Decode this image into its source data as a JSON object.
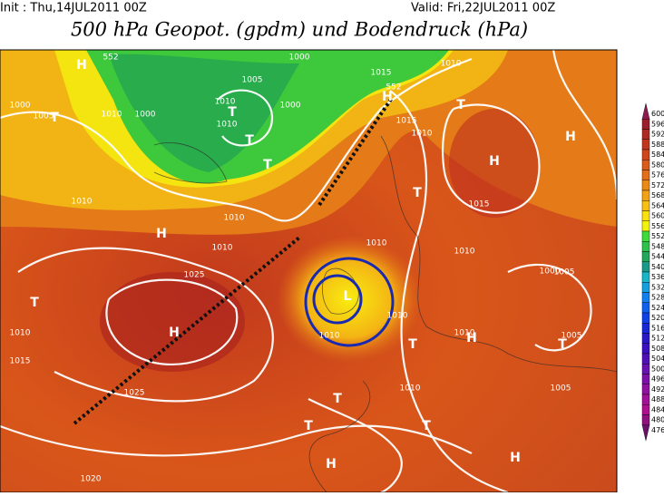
{
  "header": {
    "init": "Init : Thu,14JUL2011 00Z",
    "valid": "Valid: Fri,22JUL2011 00Z",
    "title": "500 hPa Geopot. (gpdm) und Bodendruck (hPa)"
  },
  "colorbar": {
    "levels": [
      600,
      596,
      592,
      588,
      584,
      580,
      576,
      572,
      568,
      564,
      560,
      556,
      552,
      548,
      544,
      540,
      536,
      532,
      528,
      524,
      520,
      516,
      512,
      508,
      504,
      500,
      496,
      492,
      488,
      484,
      480,
      476
    ],
    "colors": [
      "#8e1a52",
      "#9c1f2b",
      "#b02822",
      "#c2341e",
      "#d0451c",
      "#dc5a1a",
      "#e46f18",
      "#ec8a16",
      "#f2a214",
      "#f7c012",
      "#fbe010",
      "#f2f20e",
      "#3ddc3a",
      "#2fc24a",
      "#22a85a",
      "#1a9a8a",
      "#18b6c8",
      "#14a0e0",
      "#1080f0",
      "#1060f0",
      "#1040e8",
      "#1828d8",
      "#2818c8",
      "#3a10c0",
      "#5010b8",
      "#6810b0",
      "#7c10a8",
      "#9010a0",
      "#a01098",
      "#b01090",
      "#901080",
      "#6a106a"
    ]
  },
  "map_labels": [
    "552",
    "1000",
    "1015",
    "1010",
    "552",
    "H",
    "1000",
    "1005",
    "1010",
    "1005",
    "1010",
    "1000",
    "1010",
    "1000",
    "H",
    "T",
    "T",
    "T",
    "T",
    "1015",
    "1010",
    "T",
    "H",
    "1015",
    "1010",
    "1010",
    "H",
    "1010",
    "T",
    "H",
    "1010",
    "1025",
    "H",
    "1010",
    "T",
    "1010",
    "1015",
    "L",
    "1010",
    "T",
    "1010",
    "1005",
    "H",
    "1025",
    "1010",
    "T",
    "1010",
    "H",
    "1005",
    "T",
    "1020",
    "1000",
    "1005",
    "T",
    "T",
    "H"
  ]
}
